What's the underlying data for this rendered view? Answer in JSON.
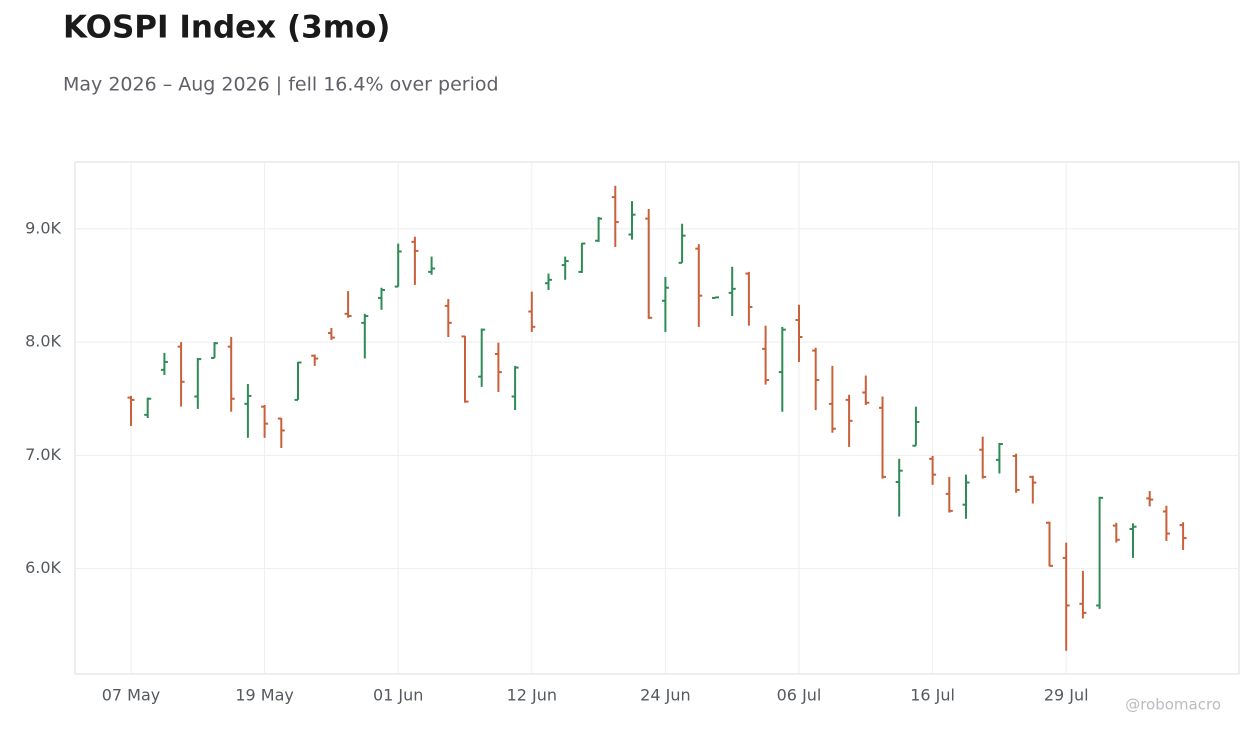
{
  "chart_data": {
    "type": "ohlc",
    "title": "KOSPI Index (3mo)",
    "subtitle": "May 2026 – Aug 2026 | fell 16.4% over period",
    "watermark": "@robomacro",
    "up_color": "#2e8b57",
    "down_color": "#c8603a",
    "grid": true,
    "categories": [
      "07 May",
      null,
      null,
      null,
      null,
      null,
      null,
      null,
      "19 May",
      null,
      null,
      null,
      null,
      null,
      null,
      null,
      "01 Jun",
      null,
      null,
      null,
      null,
      null,
      null,
      null,
      "12 Jun",
      null,
      null,
      null,
      null,
      null,
      null,
      null,
      "24 Jun",
      null,
      null,
      null,
      null,
      null,
      null,
      null,
      "06 Jul",
      null,
      null,
      null,
      null,
      null,
      null,
      null,
      "16 Jul",
      null,
      null,
      null,
      null,
      null,
      null,
      null,
      "29 Jul",
      null,
      null,
      null,
      null,
      null,
      null,
      null
    ],
    "open": [
      7510,
      7358,
      7755,
      7960,
      7520,
      7860,
      7960,
      7455,
      7430,
      7325,
      7490,
      7880,
      8080,
      8250,
      8170,
      8390,
      8490,
      8885,
      8620,
      8320,
      8050,
      7695,
      7895,
      7520,
      8270,
      8520,
      8680,
      8620,
      8895,
      9280,
      8950,
      9090,
      8365,
      8700,
      8825,
      8390,
      8435,
      8605,
      7940,
      7735,
      8195,
      7925,
      7455,
      7490,
      7555,
      7420,
      6765,
      7085,
      6970,
      6660,
      6565,
      7050,
      6960,
      6995,
      6810,
      6405,
      6095,
      5690,
      5675,
      6380,
      6350,
      6620,
      6505,
      6385
    ],
    "high": [
      7525,
      7510,
      7905,
      8000,
      7860,
      8000,
      8045,
      7630,
      7445,
      7330,
      7825,
      7890,
      8125,
      8450,
      8250,
      8480,
      8870,
      8930,
      8755,
      8380,
      8055,
      8120,
      7995,
      7790,
      8445,
      8605,
      8755,
      8875,
      9105,
      9380,
      9245,
      9175,
      8575,
      9045,
      8865,
      8400,
      8665,
      8620,
      8145,
      8135,
      8330,
      7950,
      7790,
      7535,
      7705,
      7520,
      6970,
      7430,
      6995,
      6810,
      6830,
      7165,
      7110,
      7015,
      6820,
      6415,
      6230,
      5980,
      6635,
      6405,
      6400,
      6685,
      6555,
      6410
    ],
    "low": [
      7260,
      7330,
      7710,
      7430,
      7410,
      7860,
      7385,
      7155,
      7155,
      7065,
      7490,
      7790,
      8020,
      8215,
      7855,
      8285,
      8490,
      8505,
      8595,
      8045,
      7465,
      7605,
      7560,
      7400,
      8090,
      8460,
      8550,
      8610,
      8885,
      8840,
      8905,
      8205,
      8090,
      8700,
      8135,
      8390,
      8230,
      8145,
      7625,
      7385,
      7825,
      7400,
      7200,
      7075,
      7445,
      6795,
      6460,
      7085,
      6740,
      6495,
      6440,
      6795,
      6840,
      6670,
      6575,
      6020,
      5275,
      5560,
      5645,
      6230,
      6095,
      6550,
      6245,
      6165
    ],
    "close": [
      7490,
      7500,
      7825,
      7650,
      7850,
      7990,
      7500,
      7525,
      7280,
      7220,
      7820,
      7855,
      8040,
      8230,
      8230,
      8460,
      8800,
      8805,
      8650,
      8170,
      7475,
      8110,
      7735,
      7775,
      8135,
      8550,
      8715,
      8870,
      9090,
      9060,
      9125,
      8215,
      8480,
      8940,
      8410,
      8395,
      8470,
      8310,
      7665,
      8110,
      8045,
      7665,
      7235,
      7305,
      7465,
      6810,
      6865,
      7295,
      6830,
      6510,
      6760,
      6810,
      7100,
      6695,
      6760,
      6025,
      5675,
      5610,
      6625,
      6255,
      6370,
      6610,
      6310,
      6270
    ],
    "ylim": [
      5070,
      9590
    ],
    "yticks": [
      {
        "value": 6000,
        "label": "6.0K"
      },
      {
        "value": 7000,
        "label": "7.0K"
      },
      {
        "value": 8000,
        "label": "8.0K"
      },
      {
        "value": 9000,
        "label": "9.0K"
      }
    ]
  }
}
